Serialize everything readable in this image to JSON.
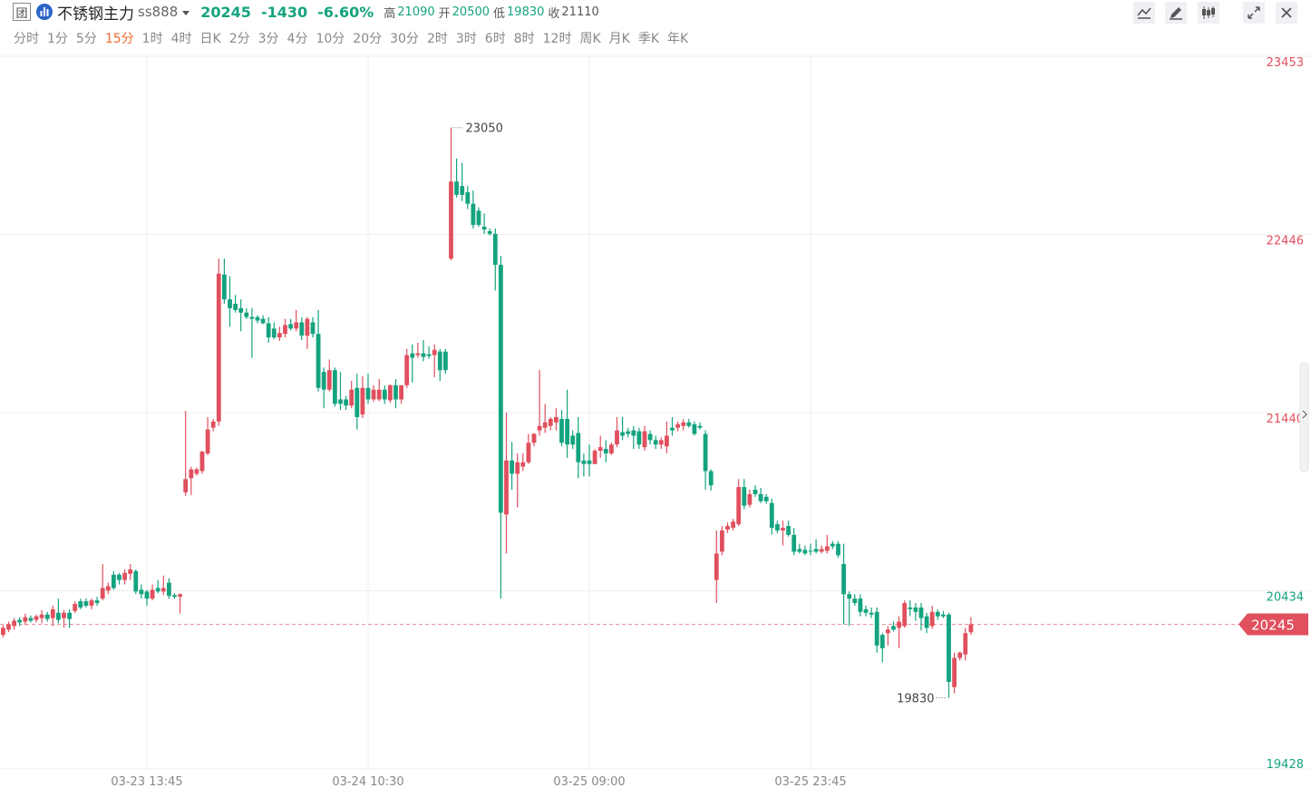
{
  "header": {
    "badge": "团",
    "name": "不锈钢主力",
    "code": "ss888",
    "change": "-1430",
    "change_pct": "-6.60%",
    "high_label": "高",
    "high": "21090",
    "open_label": "开",
    "open": "20500",
    "low_label": "低",
    "low": "19830",
    "close_label": "收",
    "periods": [
      "分时",
      "1分",
      "5分",
      "15分",
      "1时",
      "4时",
      "日K",
      "2分",
      "3分",
      "4分",
      "10分",
      "20分",
      "30分",
      "2时",
      "3时",
      "6时",
      "8时",
      "12时",
      "周K",
      "月K",
      "季K",
      "年K"
    ],
    "active_period_index": 3
  },
  "chart_data": {
    "type": "candlestick",
    "categories": [
      null,
      null,
      null,
      null,
      null,
      null,
      null,
      null,
      null,
      null,
      null,
      null,
      null,
      null,
      null,
      null,
      null,
      null,
      null,
      null,
      null,
      null,
      null,
      null,
      null,
      null,
      "03-23 13:45",
      null,
      null,
      null,
      null,
      null,
      null,
      null,
      null,
      null,
      null,
      null,
      null,
      null,
      null,
      null,
      null,
      null,
      null,
      null,
      null,
      null,
      null,
      null,
      null,
      null,
      null,
      null,
      null,
      null,
      null,
      null,
      null,
      null,
      null,
      null,
      null,
      null,
      null,
      null,
      "03-24 10:30",
      null,
      null,
      null,
      null,
      null,
      null,
      null,
      null,
      null,
      null,
      null,
      null,
      null,
      null,
      null,
      null,
      null,
      null,
      null,
      null,
      null,
      null,
      null,
      null,
      null,
      null,
      null,
      null,
      null,
      null,
      null,
      null,
      null,
      null,
      null,
      null,
      null,
      null,
      null,
      "03-25 09:00",
      null,
      null,
      null,
      null,
      null,
      null,
      null,
      null,
      null,
      null,
      null,
      null,
      null,
      null,
      null,
      null,
      null,
      null,
      null,
      null,
      null,
      null,
      null,
      null,
      null,
      null,
      null,
      null,
      null,
      null,
      null,
      null,
      null,
      null,
      null,
      null,
      null,
      null,
      null,
      "03-25 23:45",
      null,
      null,
      null,
      null,
      null,
      null,
      null,
      null,
      null,
      null,
      null,
      null,
      null,
      null,
      null,
      null,
      null,
      null,
      null,
      null,
      null,
      null,
      null,
      null,
      null,
      null,
      null,
      null,
      null
    ],
    "open": [
      20185,
      20215,
      20235,
      20270,
      20260,
      20280,
      20270,
      20280,
      20300,
      20280,
      20310,
      20280,
      20310,
      20320,
      20375,
      20375,
      20350,
      20380,
      20390,
      20435,
      20525,
      20525,
      20495,
      20530,
      20545,
      20440,
      20430,
      20390,
      20450,
      20430,
      20480,
      20410,
      20400,
      20990,
      21070,
      21095,
      21110,
      21210,
      21355,
      21390,
      22220,
      22080,
      22055,
      22030,
      22005,
      21980,
      21980,
      21970,
      21945,
      21915,
      21865,
      21885,
      21940,
      21915,
      21950,
      21875,
      21950,
      21885,
      21670,
      21570,
      21680,
      21515,
      21515,
      21480,
      21580,
      21430,
      21580,
      21515,
      21515,
      21570,
      21510,
      21595,
      21515,
      21595,
      21775,
      21765,
      21775,
      21770,
      21765,
      21785,
      21785,
      22310,
      22745,
      22720,
      22685,
      22620,
      22580,
      22490,
      22465,
      22450,
      22275,
      20865,
      21170,
      21095,
      21135,
      21160,
      21270,
      21340,
      21355,
      21365,
      21385,
      21405,
      21405,
      21310,
      21325,
      21170,
      21170,
      21150,
      21225,
      21235,
      21210,
      21260,
      21330,
      21335,
      21340,
      21335,
      21245,
      21320,
      21285,
      21260,
      21250,
      21355,
      21355,
      21365,
      21385,
      21375,
      21365,
      21320,
      21110,
      20495,
      20655,
      20780,
      20790,
      20810,
      21020,
      20920,
      21005,
      20980,
      20965,
      20930,
      20810,
      20775,
      20800,
      20750,
      20670,
      20665,
      20660,
      20670,
      20655,
      20660,
      20700,
      20700,
      20585,
      20415,
      20390,
      20390,
      20330,
      20310,
      20315,
      20185,
      20195,
      20235,
      20225,
      20235,
      20340,
      20340,
      20340,
      20290,
      20235,
      20315,
      20300,
      20300,
      19890,
      20055,
      20075,
      20200
    ],
    "high": [
      20240,
      20260,
      20280,
      20285,
      20305,
      20295,
      20300,
      20325,
      20315,
      20350,
      20390,
      20325,
      20330,
      20375,
      20390,
      20390,
      20390,
      20400,
      20585,
      20480,
      20545,
      20535,
      20555,
      20585,
      20555,
      20470,
      20440,
      20470,
      20495,
      20520,
      20505,
      20420,
      20420,
      21450,
      21135,
      21130,
      21225,
      21415,
      21405,
      22310,
      22310,
      22210,
      22105,
      22080,
      22030,
      22030,
      21990,
      21990,
      21980,
      21950,
      21925,
      21970,
      21970,
      22020,
      21980,
      21980,
      21980,
      22020,
      21695,
      21740,
      21695,
      21670,
      21535,
      21620,
      21660,
      21645,
      21660,
      21595,
      21630,
      21595,
      21600,
      21630,
      21595,
      21800,
      21825,
      21835,
      21850,
      21815,
      21825,
      21800,
      21800,
      23050,
      22875,
      22850,
      22720,
      22695,
      22600,
      22565,
      22480,
      22480,
      22325,
      21440,
      21275,
      21210,
      21210,
      21320,
      21325,
      21680,
      21490,
      21415,
      21465,
      21455,
      21570,
      21340,
      21415,
      21210,
      21260,
      21235,
      21310,
      21285,
      21270,
      21415,
      21415,
      21355,
      21365,
      21355,
      21365,
      21340,
      21310,
      21300,
      21390,
      21415,
      21390,
      21405,
      21405,
      21390,
      21385,
      21340,
      21120,
      20775,
      20800,
      20820,
      20840,
      21065,
      21065,
      21005,
      21030,
      21015,
      20980,
      20955,
      20830,
      20830,
      20830,
      20790,
      20700,
      20690,
      20700,
      20725,
      20690,
      20750,
      20715,
      20715,
      20700,
      20430,
      20415,
      20415,
      20350,
      20340,
      20340,
      20195,
      20235,
      20260,
      20290,
      20380,
      20380,
      20365,
      20365,
      20310,
      20350,
      20330,
      20320,
      20310,
      20085,
      20090,
      20225,
      20285
    ],
    "low": [
      20170,
      20200,
      20215,
      20235,
      20240,
      20255,
      20255,
      20250,
      20260,
      20235,
      20250,
      20225,
      20225,
      20310,
      20330,
      20340,
      20330,
      20350,
      20380,
      20415,
      20440,
      20470,
      20470,
      20495,
      20415,
      20390,
      20350,
      20380,
      20420,
      20410,
      20390,
      20390,
      20305,
      20970,
      20975,
      21085,
      21095,
      21200,
      21335,
      21365,
      22055,
      21925,
      22005,
      21900,
      21970,
      21750,
      21945,
      21940,
      21835,
      21855,
      21845,
      21865,
      21905,
      21900,
      21850,
      21800,
      21865,
      21560,
      21465,
      21560,
      21475,
      21455,
      21455,
      21465,
      21345,
      21410,
      21490,
      21500,
      21505,
      21490,
      21495,
      21465,
      21490,
      21580,
      21610,
      21750,
      21730,
      21745,
      21640,
      21620,
      21660,
      22300,
      22655,
      22635,
      22590,
      22480,
      22490,
      22450,
      22440,
      22130,
      20390,
      20645,
      21005,
      20905,
      21110,
      21150,
      21250,
      21310,
      21325,
      21340,
      21340,
      21250,
      21185,
      21235,
      21070,
      21080,
      21080,
      21150,
      21185,
      21160,
      21200,
      21245,
      21285,
      21300,
      21235,
      21235,
      21225,
      21260,
      21235,
      21235,
      21210,
      21310,
      21335,
      21340,
      21355,
      21310,
      21345,
      21005,
      21000,
      20365,
      20635,
      20760,
      20775,
      20800,
      20895,
      20905,
      20965,
      20930,
      20925,
      20750,
      20760,
      20690,
      20740,
      20635,
      20645,
      20635,
      20635,
      20645,
      20645,
      20645,
      20670,
      20620,
      20245,
      20235,
      20350,
      20290,
      20290,
      20280,
      20085,
      20030,
      20125,
      20205,
      20110,
      20225,
      20290,
      20265,
      20210,
      20195,
      20220,
      20270,
      20280,
      19830,
      19855,
      20040,
      20040,
      20185
    ],
    "close": [
      20225,
      20245,
      20265,
      20255,
      20285,
      20265,
      20290,
      20300,
      20275,
      20330,
      20270,
      20310,
      20275,
      20360,
      20340,
      20350,
      20380,
      20365,
      20450,
      20460,
      20450,
      20495,
      20535,
      20555,
      20430,
      20415,
      20390,
      20440,
      20430,
      20450,
      20405,
      20400,
      20415,
      21065,
      21120,
      21120,
      21220,
      21345,
      21390,
      22225,
      22080,
      22030,
      22020,
      22005,
      21980,
      21970,
      21960,
      21945,
      21865,
      21865,
      21890,
      21935,
      21915,
      21950,
      21875,
      21970,
      21885,
      21580,
      21570,
      21680,
      21490,
      21490,
      21480,
      21570,
      21415,
      21580,
      21515,
      21570,
      21570,
      21515,
      21595,
      21515,
      21595,
      21765,
      21750,
      21775,
      21755,
      21760,
      21795,
      21680,
      21680,
      22745,
      22670,
      22670,
      22620,
      22500,
      22500,
      22475,
      22450,
      22275,
      20875,
      21170,
      21095,
      21160,
      21160,
      21270,
      21320,
      21365,
      21385,
      21405,
      21415,
      21270,
      21260,
      21260,
      21160,
      21150,
      21150,
      21225,
      21245,
      21210,
      21260,
      21340,
      21310,
      21320,
      21310,
      21260,
      21335,
      21285,
      21260,
      21285,
      21310,
      21340,
      21375,
      21385,
      21365,
      21320,
      21355,
      21110,
      21030,
      20645,
      20775,
      20800,
      20825,
      21020,
      20915,
      20980,
      20980,
      20940,
      20940,
      20790,
      20775,
      20790,
      20750,
      20655,
      20655,
      20645,
      20655,
      20655,
      20670,
      20685,
      20685,
      20635,
      20415,
      20390,
      20365,
      20315,
      20310,
      20300,
      20125,
      20110,
      20215,
      20215,
      20260,
      20365,
      20330,
      20315,
      20280,
      20225,
      20315,
      20290,
      20290,
      19920,
      20055,
      20085,
      20195,
      20245
    ],
    "up_color": "#e0505e",
    "down_color": "#14a37f",
    "ylim": [
      19428,
      23453
    ],
    "yticks": [
      19428,
      20434,
      21440,
      22446,
      23453
    ],
    "grid": true,
    "last_price": 20245,
    "prev_close": 21110,
    "high_marker": 23050,
    "low_marker": 19830
  }
}
